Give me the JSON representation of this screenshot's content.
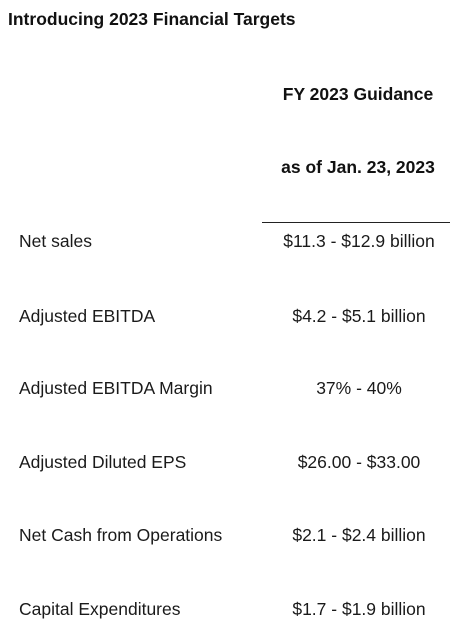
{
  "title": "Introducing 2023 Financial Targets",
  "column_header": {
    "line1": "FY 2023 Guidance",
    "line2": "as of Jan. 23, 2023"
  },
  "rows": [
    {
      "label": "Net sales",
      "value": "$11.3 - $12.9 billion"
    },
    {
      "label": "Adjusted EBITDA",
      "value": "$4.2 - $5.1 billion"
    },
    {
      "label": "Adjusted EBITDA Margin",
      "value": "37% - 40%"
    },
    {
      "label": "Adjusted Diluted EPS",
      "value": "$26.00 - $33.00"
    },
    {
      "label": "Net Cash from Operations",
      "value": "$2.1 - $2.4 billion"
    },
    {
      "label": "Capital Expenditures",
      "value": "$1.7 - $1.9 billion"
    }
  ]
}
